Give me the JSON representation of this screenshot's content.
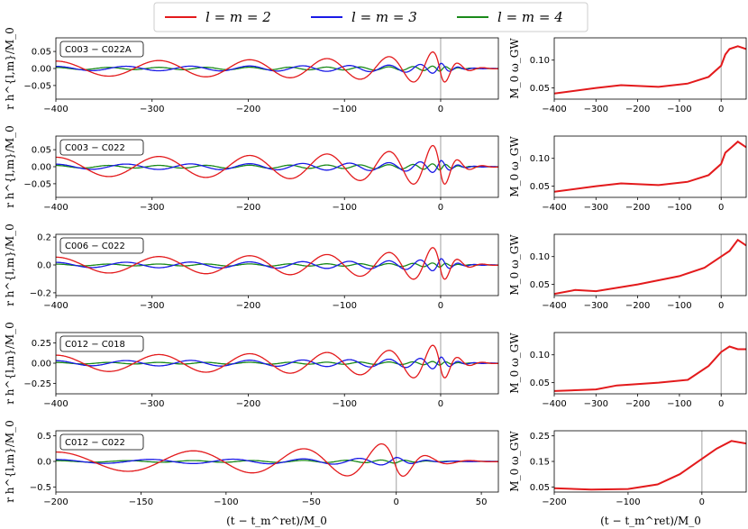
{
  "legend": {
    "entries": [
      {
        "label": "l = m = 2",
        "color": "#e31a1c"
      },
      {
        "label": "l = m = 3",
        "color": "#1a1ae6"
      },
      {
        "label": "l = m = 4",
        "color": "#1a8a1a"
      }
    ]
  },
  "colors": {
    "l2": "#e31a1c",
    "l3": "#1a1ae6",
    "l4": "#1a8a1a",
    "merger_line": "#b0b0b0",
    "freq": "#e31a1c"
  },
  "labels": {
    "ylabel_left": "r h^{l,m}/M_0",
    "ylabel_right": "M_0 ω_GW",
    "xlabel": "(t − t_m^ret)/M_0"
  },
  "chart_data": [
    {
      "type": "line",
      "name": "C003 − C022A",
      "strain": {
        "xlim": [
          -400,
          60
        ],
        "ylim": [
          -0.09,
          0.09
        ],
        "yticks": [
          0.05,
          0.0,
          -0.05
        ],
        "ytick_labels": [
          "0.05",
          "0.00",
          "−0.05"
        ],
        "xticks": [
          -400,
          -300,
          -200,
          -100,
          0
        ],
        "xtick_labels": [
          "−400",
          "−300",
          "−200",
          "−100",
          "0"
        ],
        "amp22": 0.035,
        "amp33": 0.01,
        "amp44": 0.005,
        "merger": 0
      },
      "freq": {
        "xlim": [
          -400,
          60
        ],
        "ylim": [
          0.03,
          0.14
        ],
        "yticks": [
          0.05,
          0.1
        ],
        "ytick_labels": [
          "0.05",
          "0.10"
        ],
        "xticks": [
          -400,
          -300,
          -200,
          -100,
          0
        ],
        "xtick_labels": [
          "−400",
          "−300",
          "−200",
          "−100",
          "0"
        ],
        "merger": 0,
        "points": [
          [
            -400,
            0.04
          ],
          [
            -300,
            0.05
          ],
          [
            -240,
            0.055
          ],
          [
            -150,
            0.052
          ],
          [
            -80,
            0.058
          ],
          [
            -30,
            0.07
          ],
          [
            0,
            0.09
          ],
          [
            10,
            0.11
          ],
          [
            20,
            0.12
          ],
          [
            40,
            0.125
          ],
          [
            60,
            0.12
          ]
        ]
      }
    },
    {
      "type": "line",
      "name": "C003 − C022",
      "strain": {
        "xlim": [
          -400,
          60
        ],
        "ylim": [
          -0.09,
          0.09
        ],
        "yticks": [
          0.05,
          0.0,
          -0.05
        ],
        "ytick_labels": [
          "0.05",
          "0.00",
          "−0.05"
        ],
        "xticks": [
          -400,
          -300,
          -200,
          -100,
          0
        ],
        "xtick_labels": [
          "−400",
          "−300",
          "−200",
          "−100",
          "0"
        ],
        "amp22": 0.045,
        "amp33": 0.012,
        "amp44": 0.006,
        "merger": 0
      },
      "freq": {
        "xlim": [
          -400,
          60
        ],
        "ylim": [
          0.03,
          0.14
        ],
        "yticks": [
          0.05,
          0.1
        ],
        "ytick_labels": [
          "0.05",
          "0.10"
        ],
        "xticks": [
          -400,
          -300,
          -200,
          -100,
          0
        ],
        "xtick_labels": [
          "−400",
          "−300",
          "−200",
          "−100",
          "0"
        ],
        "merger": 0,
        "points": [
          [
            -400,
            0.04
          ],
          [
            -300,
            0.05
          ],
          [
            -240,
            0.055
          ],
          [
            -150,
            0.052
          ],
          [
            -80,
            0.058
          ],
          [
            -30,
            0.07
          ],
          [
            0,
            0.09
          ],
          [
            10,
            0.11
          ],
          [
            25,
            0.12
          ],
          [
            40,
            0.13
          ],
          [
            60,
            0.12
          ]
        ]
      }
    },
    {
      "type": "line",
      "name": "C006 − C022",
      "strain": {
        "xlim": [
          -400,
          60
        ],
        "ylim": [
          -0.22,
          0.22
        ],
        "yticks": [
          0.2,
          0.0,
          -0.2
        ],
        "ytick_labels": [
          "0.2",
          "0.0",
          "−0.2"
        ],
        "xticks": [
          -400,
          -300,
          -200,
          -100,
          0
        ],
        "xtick_labels": [
          "−400",
          "−300",
          "−200",
          "−100",
          "0"
        ],
        "amp22": 0.09,
        "amp33": 0.03,
        "amp44": 0.01,
        "merger": 0
      },
      "freq": {
        "xlim": [
          -400,
          60
        ],
        "ylim": [
          0.03,
          0.14
        ],
        "yticks": [
          0.05,
          0.1
        ],
        "ytick_labels": [
          "0.05",
          "0.10"
        ],
        "xticks": [
          -400,
          -300,
          -200,
          -100,
          0
        ],
        "xtick_labels": [
          "−400",
          "−300",
          "−200",
          "−100",
          "0"
        ],
        "merger": 0,
        "points": [
          [
            -400,
            0.033
          ],
          [
            -350,
            0.04
          ],
          [
            -300,
            0.038
          ],
          [
            -200,
            0.05
          ],
          [
            -100,
            0.065
          ],
          [
            -40,
            0.08
          ],
          [
            0,
            0.1
          ],
          [
            20,
            0.11
          ],
          [
            40,
            0.13
          ],
          [
            60,
            0.12
          ]
        ]
      }
    },
    {
      "type": "line",
      "name": "C012 − C018",
      "strain": {
        "xlim": [
          -400,
          60
        ],
        "ylim": [
          -0.38,
          0.38
        ],
        "yticks": [
          0.25,
          0.0,
          -0.25
        ],
        "ytick_labels": [
          "0.25",
          "0.00",
          "−0.25"
        ],
        "xticks": [
          -400,
          -300,
          -200,
          -100,
          0
        ],
        "xtick_labels": [
          "−400",
          "−300",
          "−200",
          "−100",
          "0"
        ],
        "amp22": 0.16,
        "amp33": 0.05,
        "amp44": 0.015,
        "merger": 0
      },
      "freq": {
        "xlim": [
          -400,
          60
        ],
        "ylim": [
          0.03,
          0.14
        ],
        "yticks": [
          0.05,
          0.1
        ],
        "ytick_labels": [
          "0.05",
          "0.10"
        ],
        "xticks": [
          -400,
          -300,
          -200,
          -100,
          0
        ],
        "xtick_labels": [
          "−400",
          "−300",
          "−200",
          "−100",
          "0"
        ],
        "merger": 0,
        "points": [
          [
            -400,
            0.035
          ],
          [
            -300,
            0.038
          ],
          [
            -250,
            0.045
          ],
          [
            -150,
            0.05
          ],
          [
            -80,
            0.055
          ],
          [
            -30,
            0.08
          ],
          [
            0,
            0.105
          ],
          [
            20,
            0.115
          ],
          [
            40,
            0.11
          ],
          [
            60,
            0.11
          ]
        ]
      }
    },
    {
      "type": "line",
      "name": "C012 − C022",
      "strain": {
        "xlim": [
          -200,
          60
        ],
        "ylim": [
          -0.6,
          0.6
        ],
        "yticks": [
          0.5,
          0.0,
          -0.5
        ],
        "ytick_labels": [
          "0.5",
          "0.0",
          "−0.5"
        ],
        "xticks": [
          -200,
          -150,
          -100,
          -50,
          0,
          50
        ],
        "xtick_labels": [
          "−200",
          "−150",
          "−100",
          "−50",
          "0",
          "50"
        ],
        "amp22": 0.25,
        "amp33": 0.05,
        "amp44": 0.02,
        "merger": 0
      },
      "freq": {
        "xlim": [
          -200,
          60
        ],
        "ylim": [
          0.03,
          0.27
        ],
        "yticks": [
          0.05,
          0.15,
          0.25
        ],
        "ytick_labels": [
          "0.05",
          "0.15",
          "0.25"
        ],
        "xticks": [
          -200,
          -100,
          0
        ],
        "xtick_labels": [
          "−200",
          "−100",
          "0"
        ],
        "merger": 0,
        "points": [
          [
            -200,
            0.045
          ],
          [
            -150,
            0.04
          ],
          [
            -100,
            0.042
          ],
          [
            -60,
            0.06
          ],
          [
            -30,
            0.1
          ],
          [
            0,
            0.16
          ],
          [
            20,
            0.2
          ],
          [
            40,
            0.23
          ],
          [
            60,
            0.22
          ]
        ]
      }
    }
  ]
}
